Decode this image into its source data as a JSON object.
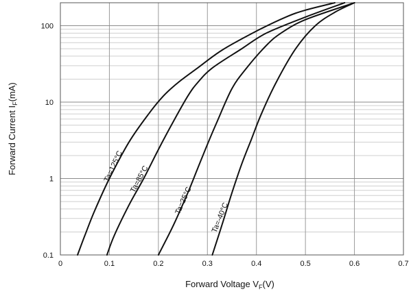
{
  "chart_data": {
    "type": "line",
    "title": "",
    "xlabel": {
      "main": "Forward Voltage  V",
      "sub": "F",
      "unit": "(V)"
    },
    "ylabel": {
      "main": "Forward Current  I",
      "sub": "F",
      "unit": "(mA)"
    },
    "xlim": [
      0,
      0.7
    ],
    "ylim": [
      0.1,
      200
    ],
    "yscale": "log",
    "grid": true,
    "x_ticks": [
      {
        "value": 0,
        "label": "0"
      },
      {
        "value": 0.1,
        "label": "0.1"
      },
      {
        "value": 0.2,
        "label": "0.2"
      },
      {
        "value": 0.3,
        "label": "0.3"
      },
      {
        "value": 0.4,
        "label": "0.4"
      },
      {
        "value": 0.5,
        "label": "0.5"
      },
      {
        "value": 0.6,
        "label": "0.6"
      },
      {
        "value": 0.7,
        "label": "0.7"
      }
    ],
    "y_ticks": [
      {
        "value": 0.1,
        "label": "0.1"
      },
      {
        "value": 1,
        "label": "1"
      },
      {
        "value": 10,
        "label": "10"
      },
      {
        "value": 100,
        "label": "100"
      }
    ],
    "series": [
      {
        "name": "Ta=125°C",
        "x": [
          0.035,
          0.05,
          0.07,
          0.1,
          0.14,
          0.18,
          0.21,
          0.24,
          0.28,
          0.33,
          0.4,
          0.46,
          0.5,
          0.56
        ],
        "y": [
          0.1,
          0.18,
          0.38,
          1.0,
          3.0,
          7.0,
          12,
          18,
          28,
          48,
          85,
          130,
          160,
          200
        ]
      },
      {
        "name": "Ta=85°C",
        "x": [
          0.095,
          0.11,
          0.14,
          0.17,
          0.2,
          0.23,
          0.26,
          0.28,
          0.31,
          0.37,
          0.42,
          0.5,
          0.58
        ],
        "y": [
          0.1,
          0.18,
          0.45,
          1.0,
          2.4,
          5.5,
          12,
          18,
          28,
          50,
          80,
          130,
          200
        ]
      },
      {
        "name": "Ta=25°C",
        "x": [
          0.2,
          0.23,
          0.26,
          0.28,
          0.3,
          0.32,
          0.35,
          0.38,
          0.42,
          0.45,
          0.5,
          0.6
        ],
        "y": [
          0.1,
          0.24,
          0.65,
          1.35,
          2.8,
          5.6,
          15,
          28,
          55,
          80,
          120,
          200
        ]
      },
      {
        "name": "Ta=-40°C",
        "x": [
          0.31,
          0.33,
          0.35,
          0.37,
          0.39,
          0.41,
          0.44,
          0.48,
          0.52,
          0.56,
          0.6
        ],
        "y": [
          0.1,
          0.25,
          0.65,
          1.55,
          3.3,
          7.0,
          18,
          50,
          100,
          150,
          200
        ]
      }
    ]
  }
}
